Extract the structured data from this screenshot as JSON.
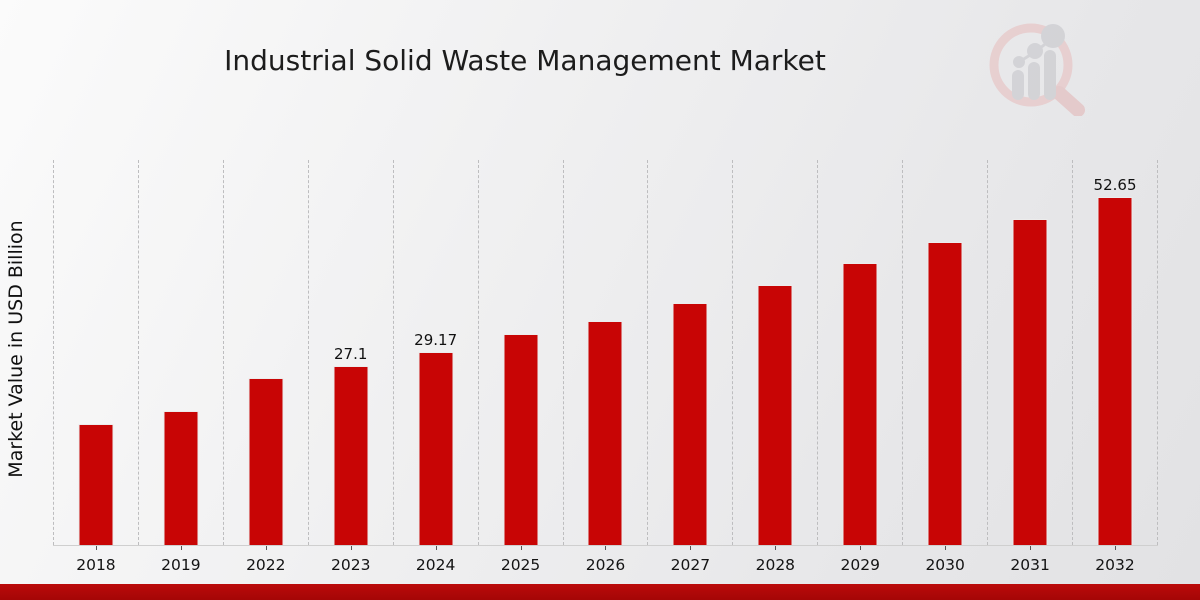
{
  "page": {
    "background_top": "#fbfbfb",
    "background_bottom": "#e2e2e4"
  },
  "chart_data": {
    "type": "bar",
    "title": "Industrial Solid Waste Management Market",
    "xlabel": "",
    "ylabel": "Market Value in USD Billion",
    "categories": [
      "2018",
      "2019",
      "2022",
      "2023",
      "2024",
      "2025",
      "2026",
      "2027",
      "2028",
      "2029",
      "2030",
      "2031",
      "2032"
    ],
    "values": [
      18.3,
      20.3,
      25.2,
      27.1,
      29.17,
      31.9,
      33.9,
      36.6,
      39.4,
      42.6,
      45.9,
      49.3,
      52.65
    ],
    "bar_labels": [
      "",
      "",
      "",
      "27.1",
      "29.17",
      "",
      "",
      "",
      "",
      "",
      "",
      "",
      "52.65"
    ],
    "ylim": [
      0,
      58.25
    ],
    "y_axis_ticks_visible": false,
    "grid": "vertical-dashed",
    "legend_position": "none",
    "bar_color": "#c80505",
    "bar_edge_color": "#ececec",
    "gridline_color": "#bdbdbf",
    "text_color": "#111111"
  },
  "branding": {
    "logo_icon": "magnifier-bar-chart-watermark",
    "logo_ring_color": "#e7bcbc",
    "logo_bar_color": "#c3c3c8",
    "accent_bar_color": "#b20808"
  }
}
